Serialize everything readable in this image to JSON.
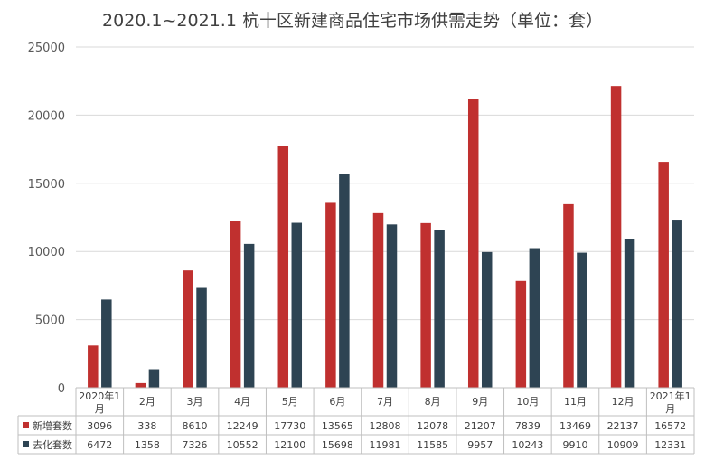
{
  "chart_data": {
    "type": "bar",
    "title": "2020.1~2021.1 杭十区新建商品住宅市场供需走势（单位：套）",
    "categories": [
      "2020年1月",
      "2月",
      "3月",
      "4月",
      "5月",
      "6月",
      "7月",
      "8月",
      "9月",
      "10月",
      "11月",
      "12月",
      "2021年1月"
    ],
    "series": [
      {
        "name": "新增套数",
        "color": "#c0302f",
        "values": [
          3096,
          338,
          8610,
          12249,
          17730,
          13565,
          12808,
          12078,
          21207,
          7839,
          13469,
          22137,
          16572
        ]
      },
      {
        "name": "去化套数",
        "color": "#2e4453",
        "values": [
          6472,
          1358,
          7326,
          10552,
          12100,
          15698,
          11981,
          11585,
          9957,
          10243,
          9910,
          10909,
          12331
        ]
      }
    ],
    "ylim": [
      0,
      25000
    ],
    "yticks": [
      0,
      5000,
      10000,
      15000,
      20000,
      25000
    ],
    "grid": true,
    "legend": "data-table"
  }
}
